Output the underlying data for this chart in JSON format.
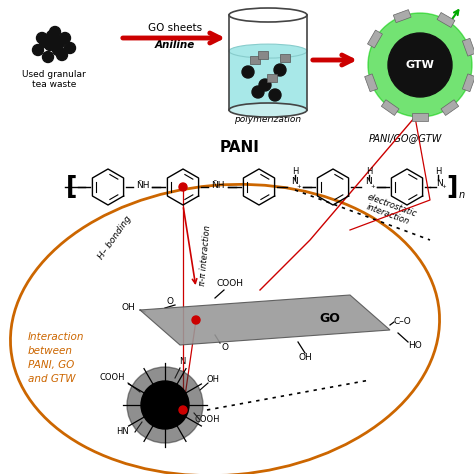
{
  "bg_color": "#ffffff",
  "arrow_red": "#cc0000",
  "oval_color": "#cc6600",
  "green_color": "#00cc00",
  "black": "#111111",
  "gray_go": "#888888",
  "text_color": "#000000",
  "red_dot": "#cc0000",
  "tea_label1": "Used granular",
  "tea_label2": "tea waste",
  "go_sheets": "GO sheets",
  "aniline": "Aniline",
  "polymerization": "polymerization",
  "gtw_label": "GTW",
  "pani_go_gtw": "PANI/GO@GTW",
  "pani_label": "PANI",
  "go_label": "GO",
  "h_bonding": "H– bonding",
  "pi_pi": "π-π interaction",
  "electrostatic": "electrostatic\ninteraction",
  "interaction_label": "Interaction\nbetween\nPANI, GO\nand GTW"
}
